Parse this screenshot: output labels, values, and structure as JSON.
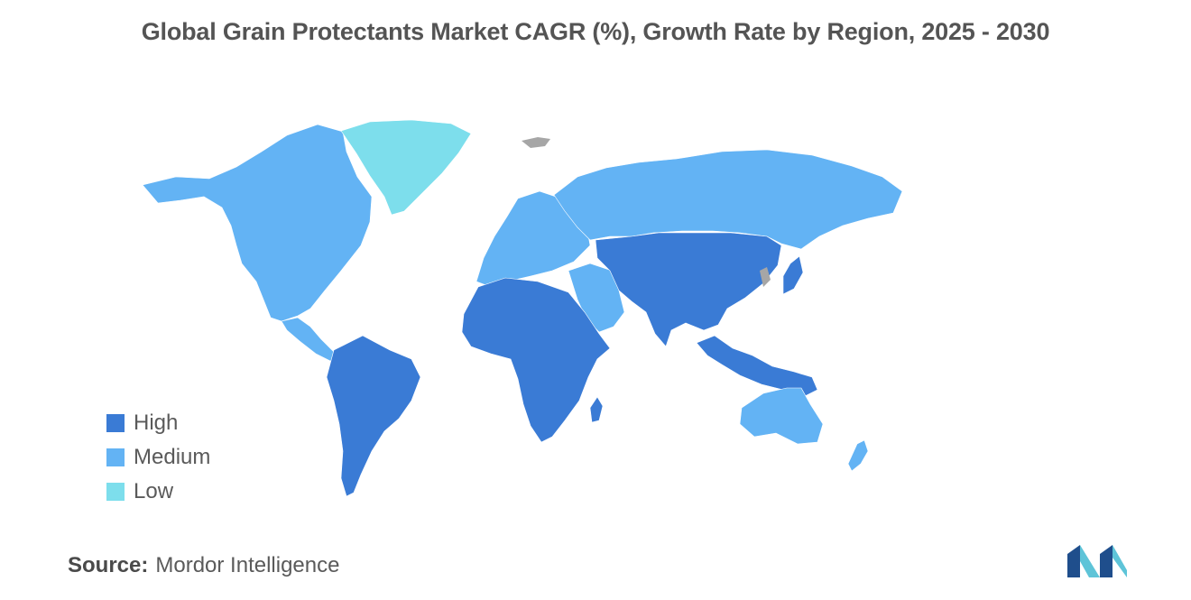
{
  "title": "Global Grain Protectants Market CAGR (%), Growth Rate by Region, 2025 - 2030",
  "legend": [
    {
      "key": "high",
      "label": "High",
      "color": "#3a7bd5"
    },
    {
      "key": "medium",
      "label": "Medium",
      "color": "#63b3f4"
    },
    {
      "key": "low",
      "label": "Low",
      "color": "#7ddeec"
    }
  ],
  "no_data_color": "#a6a6a6",
  "regions": [
    {
      "name": "North America",
      "level": "medium"
    },
    {
      "name": "Greenland",
      "level": "low"
    },
    {
      "name": "Central America",
      "level": "medium"
    },
    {
      "name": "South America",
      "level": "high"
    },
    {
      "name": "Europe",
      "level": "medium"
    },
    {
      "name": "Russia",
      "level": "medium"
    },
    {
      "name": "Middle East",
      "level": "medium"
    },
    {
      "name": "Africa",
      "level": "high"
    },
    {
      "name": "Madagascar",
      "level": "high"
    },
    {
      "name": "Asia",
      "level": "high"
    },
    {
      "name": "Japan",
      "level": "high"
    },
    {
      "name": "Southeast Asia",
      "level": "high"
    },
    {
      "name": "Australia",
      "level": "medium"
    },
    {
      "name": "New Zealand",
      "level": "medium"
    }
  ],
  "source": {
    "label": "Source:",
    "text": "Mordor Intelligence"
  },
  "logo": {
    "icon": "mordor-intelligence-logo-icon",
    "color_dark": "#1f4e8c",
    "color_light": "#5ec4d8"
  }
}
